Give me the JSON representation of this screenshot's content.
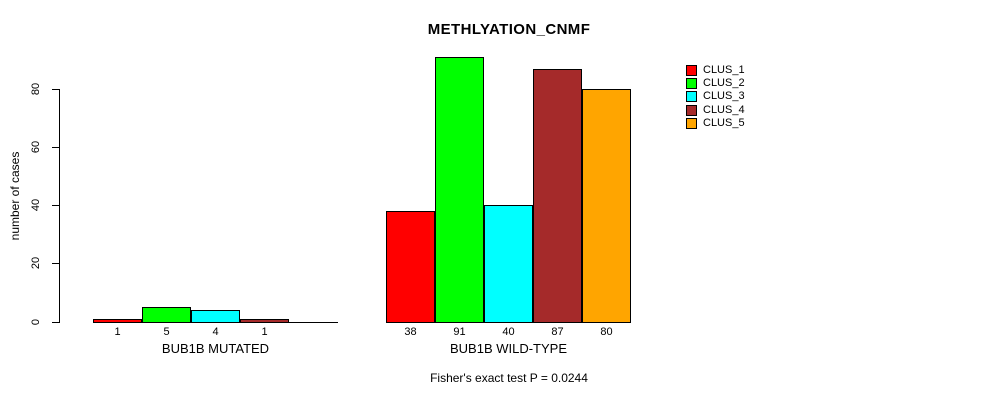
{
  "chart_data": {
    "type": "bar",
    "title": "METHLYATION_CNMF",
    "ylabel": "number of cases",
    "xlabel": "",
    "annotation": "Fisher's exact test P = 0.0244",
    "categories": [
      "BUB1B MUTATED",
      "BUB1B WILD-TYPE"
    ],
    "series": [
      {
        "name": "CLUS_1",
        "color": "#FF0000",
        "values": [
          1,
          38
        ]
      },
      {
        "name": "CLUS_2",
        "color": "#00FF00",
        "values": [
          5,
          91
        ]
      },
      {
        "name": "CLUS_3",
        "color": "#00FFFF",
        "values": [
          4,
          40
        ]
      },
      {
        "name": "CLUS_4",
        "color": "#A52A2A",
        "values": [
          1,
          87
        ]
      },
      {
        "name": "CLUS_5",
        "color": "#FFA500",
        "values": [
          0,
          80
        ]
      }
    ],
    "yticks": [
      0,
      20,
      40,
      60,
      80
    ],
    "ylim": [
      0,
      93
    ],
    "grid": false,
    "legend_position": "right",
    "bar_value_labels": true,
    "zero_value_labels_hidden": true,
    "axis_color": "#000000",
    "background_color": "#FFFFFF"
  }
}
